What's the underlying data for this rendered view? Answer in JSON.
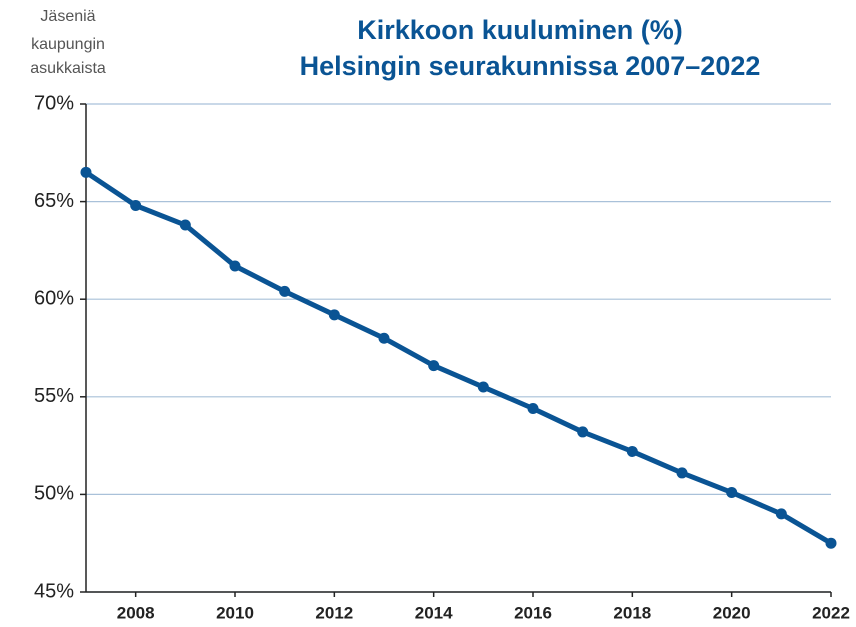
{
  "chart_data": {
    "type": "line",
    "title": "Kirkkoon kuuluminen (%)",
    "subtitle": "Helsingin seurakunnissa 2007–2022",
    "y_label": [
      "Jäseniä",
      "kaupungin",
      "asukkaista"
    ],
    "x": [
      2007,
      2008,
      2009,
      2010,
      2011,
      2012,
      2013,
      2014,
      2015,
      2016,
      2017,
      2018,
      2019,
      2020,
      2021,
      2022
    ],
    "series": [
      {
        "name": "Kirkkoon kuuluminen",
        "color": "#0a5494",
        "values": [
          66.5,
          64.8,
          63.8,
          61.7,
          60.4,
          59.2,
          58.0,
          56.6,
          55.5,
          54.4,
          53.2,
          52.2,
          51.1,
          50.1,
          49.0,
          47.5
        ]
      }
    ],
    "xlim": [
      2007,
      2022
    ],
    "xticks": [
      2008,
      2010,
      2012,
      2014,
      2016,
      2018,
      2020,
      2022
    ],
    "ylim": [
      45,
      70
    ],
    "yticks": [
      {
        "value": 45,
        "label": "45%"
      },
      {
        "value": 50,
        "label": "50%"
      },
      {
        "value": 55,
        "label": "55%"
      },
      {
        "value": 60,
        "label": "60%"
      },
      {
        "value": 65,
        "label": "65%"
      },
      {
        "value": 70,
        "label": "70%"
      }
    ],
    "grid": true
  }
}
